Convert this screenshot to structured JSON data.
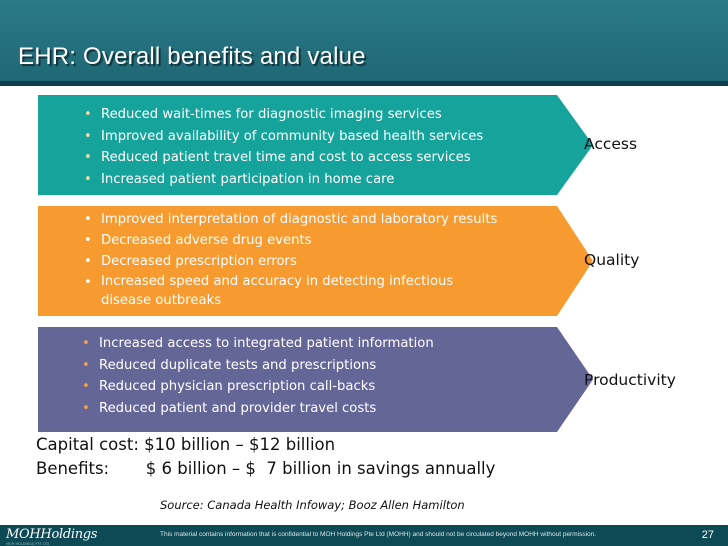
{
  "slide": {
    "title": "EHR: Overall benefits and value",
    "colors": {
      "header": "#1f6674",
      "access": "#15a39b",
      "quality": "#f79a2f",
      "productivity": "#646698",
      "footer": "#0d4a55"
    },
    "bands": [
      {
        "category": "Access",
        "items": [
          "Reduced wait-times for diagnostic imaging services",
          "Improved availability of community based health services",
          "Reduced patient travel time and cost to access services",
          "Increased patient participation in home care"
        ]
      },
      {
        "category": "Quality",
        "items": [
          "Improved interpretation of diagnostic and laboratory results",
          "Decreased adverse drug events",
          "Decreased prescription errors",
          "Increased speed and accuracy in detecting infectious",
          "disease outbreaks"
        ]
      },
      {
        "category": "Productivity",
        "items": [
          "Increased access to integrated patient information",
          "Reduced duplicate tests and prescriptions",
          "Reduced physician prescription call-backs",
          "Reduced patient and provider travel costs"
        ]
      }
    ],
    "bullet_glyph": "•",
    "capital_cost": "Capital cost: $10 billion – $12 billion",
    "benefits": "Benefits:       $ 6 billion – $  7 billion in savings annually",
    "source": "Source: Canada Health Infoway; Booz Allen Hamilton"
  },
  "footer": {
    "logo": "MOHHoldings",
    "logo_sub": "MOH HOLDINGS PTE LTD",
    "disclaimer": "This material contains information that is confidential to MOH Holdings Pte Ltd (MOHH) and should not be circulated beyond MOHH without permission.",
    "page_number": "27"
  }
}
